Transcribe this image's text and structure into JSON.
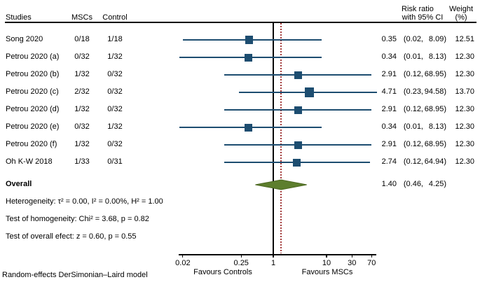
{
  "header": {
    "studies": "Studies",
    "mscs": "MSCs",
    "control": "Control",
    "risk_ratio_line1": "Risk ratio",
    "risk_ratio_line2": "with 95% CI",
    "weight_line1": "Weight",
    "weight_line2": "(%)"
  },
  "chart_data": {
    "type": "forest",
    "x_scale": "log10",
    "axis": {
      "ticks": [
        0.02,
        0.25,
        1,
        10,
        30,
        70
      ],
      "tick_labels": [
        "0.02",
        "0.25",
        "1",
        "10",
        "30",
        "70"
      ],
      "null_line_value": 1,
      "overall_line_value": 1.4,
      "xlim": [
        0.015,
        90
      ]
    },
    "studies": [
      {
        "label": "Song 2020",
        "mscs": "0/18",
        "control": "1/18",
        "est": 0.35,
        "lo": 0.02,
        "hi": 8.09,
        "weight": 12.51
      },
      {
        "label": "Petrou 2020 (a)",
        "mscs": "0/32",
        "control": "1/32",
        "est": 0.34,
        "lo": 0.01,
        "hi": 8.13,
        "weight": 12.3
      },
      {
        "label": "Petrou 2020 (b)",
        "mscs": "1/32",
        "control": "0/32",
        "est": 2.91,
        "lo": 0.12,
        "hi": 68.95,
        "weight": 12.3
      },
      {
        "label": "Petrou 2020 (c)",
        "mscs": "2/32",
        "control": "0/32",
        "est": 4.71,
        "lo": 0.23,
        "hi": 94.58,
        "weight": 13.7
      },
      {
        "label": "Petrou 2020 (d)",
        "mscs": "1/32",
        "control": "0/32",
        "est": 2.91,
        "lo": 0.12,
        "hi": 68.95,
        "weight": 12.3
      },
      {
        "label": "Petrou 2020 (e)",
        "mscs": "0/32",
        "control": "1/32",
        "est": 0.34,
        "lo": 0.01,
        "hi": 8.13,
        "weight": 12.3
      },
      {
        "label": "Petrou 2020 (f)",
        "mscs": "1/32",
        "control": "0/32",
        "est": 2.91,
        "lo": 0.12,
        "hi": 68.95,
        "weight": 12.3
      },
      {
        "label": "Oh K-W 2018",
        "mscs": "1/33",
        "control": "0/31",
        "est": 2.74,
        "lo": 0.12,
        "hi": 64.94,
        "weight": 12.3
      }
    ],
    "overall": {
      "label": "Overall",
      "est": 1.4,
      "lo": 0.46,
      "hi": 4.25
    }
  },
  "stats": {
    "heterogeneity": "Heterogeneity: τ² = 0.00, I² = 0.00%, H² = 1.00",
    "homogeneity": "Test of homogeneity: Chi² = 3.68, p = 0.82",
    "overall_effect": "Test of overall efect: z = 0.60, p = 0.55"
  },
  "axis_labels": {
    "left": "Favours Controls",
    "right": "Favours MSCs"
  },
  "footnote": "Random-effects DerSimonian–Laird model",
  "colors": {
    "marker": "#1d4d70",
    "ci_line": "#1d4d70",
    "diamond_fill": "#5d7e2d",
    "diamond_stroke": "#4a661f",
    "overall_line": "#a33c3c",
    "null_line": "#000000"
  }
}
